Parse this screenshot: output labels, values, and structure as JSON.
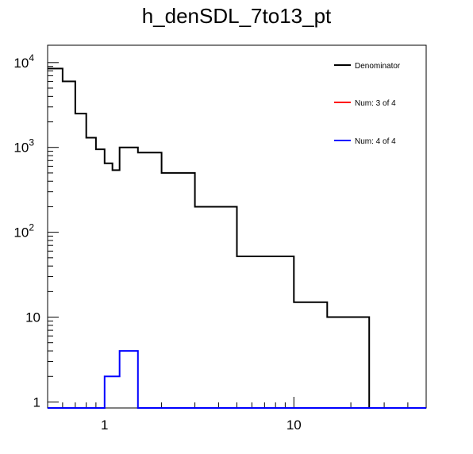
{
  "chart_data": {
    "type": "histogram-step",
    "title": "h_denSDL_7to13_pt",
    "xlabel": "",
    "ylabel": "",
    "x_scale": "log",
    "y_scale": "log",
    "xlim": [
      0.5,
      50
    ],
    "ylim": [
      0.85,
      16000
    ],
    "x_tick_labels": [
      {
        "value": 1,
        "label": "1"
      },
      {
        "value": 10,
        "label": "10"
      }
    ],
    "y_tick_labels": [
      {
        "value": 1,
        "label": "1"
      },
      {
        "value": 10,
        "label": "10"
      },
      {
        "value": 100,
        "label": "10",
        "exp": "2"
      },
      {
        "value": 1000,
        "label": "10",
        "exp": "3"
      },
      {
        "value": 10000,
        "label": "10",
        "exp": "4"
      }
    ],
    "legend_position": "top-right",
    "series": [
      {
        "name": "Denominator",
        "color": "#000000",
        "bins": [
          {
            "lo": 0.5,
            "hi": 0.6,
            "value": 8500
          },
          {
            "lo": 0.6,
            "hi": 0.7,
            "value": 6000
          },
          {
            "lo": 0.7,
            "hi": 0.8,
            "value": 2500
          },
          {
            "lo": 0.8,
            "hi": 0.9,
            "value": 1300
          },
          {
            "lo": 0.9,
            "hi": 1.0,
            "value": 950
          },
          {
            "lo": 1.0,
            "hi": 1.1,
            "value": 650
          },
          {
            "lo": 1.1,
            "hi": 1.2,
            "value": 540
          },
          {
            "lo": 1.2,
            "hi": 1.5,
            "value": 1000
          },
          {
            "lo": 1.5,
            "hi": 2.0,
            "value": 870
          },
          {
            "lo": 2.0,
            "hi": 3.0,
            "value": 500
          },
          {
            "lo": 3.0,
            "hi": 5.0,
            "value": 200
          },
          {
            "lo": 5.0,
            "hi": 10.0,
            "value": 52
          },
          {
            "lo": 10.0,
            "hi": 15.0,
            "value": 15
          },
          {
            "lo": 15.0,
            "hi": 25.0,
            "value": 10
          },
          {
            "lo": 25.0,
            "hi": 50.0,
            "value": 0
          }
        ]
      },
      {
        "name": "Num: 3 of 4",
        "color": "#ff0000",
        "bins": []
      },
      {
        "name": "Num: 4 of 4",
        "color": "#0000ff",
        "bins": [
          {
            "lo": 0.5,
            "hi": 1.0,
            "value": 0
          },
          {
            "lo": 1.0,
            "hi": 1.2,
            "value": 2
          },
          {
            "lo": 1.2,
            "hi": 1.5,
            "value": 4
          },
          {
            "lo": 1.5,
            "hi": 50.0,
            "value": 0
          }
        ]
      }
    ]
  }
}
